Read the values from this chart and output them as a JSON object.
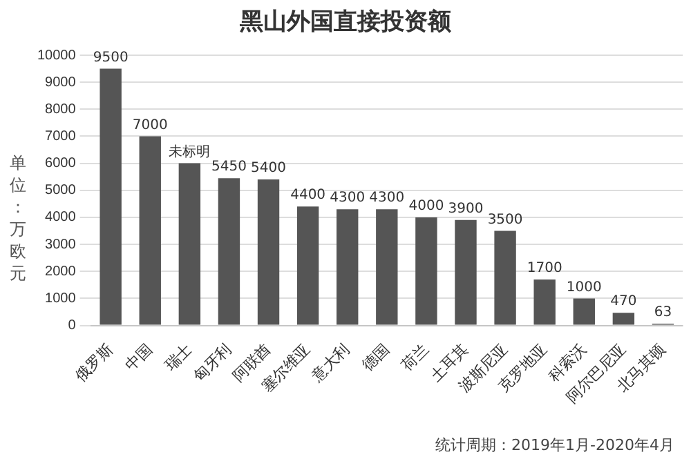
{
  "chart_data": {
    "type": "bar",
    "title": "黑山外国直接投资额",
    "ylabel": "单位：万欧元",
    "categories": [
      "俄罗斯",
      "中国",
      "瑞士",
      "匈牙利",
      "阿联酋",
      "塞尔维亚",
      "意大利",
      "德国",
      "荷兰",
      "土耳其",
      "波斯尼亚",
      "克罗地亚",
      "科索沃",
      "阿尔巴尼亚",
      "北马其顿"
    ],
    "values": [
      9500,
      7000,
      6000,
      5450,
      5400,
      4400,
      4300,
      4300,
      4000,
      3900,
      3500,
      1700,
      1000,
      470,
      63
    ],
    "value_labels": [
      "9500",
      "7000",
      "未标明",
      "5450",
      "5400",
      "4400",
      "4300",
      "4300",
      "4000",
      "3900",
      "3500",
      "1700",
      "1000",
      "470",
      "63"
    ],
    "color": "#555555",
    "ylim": [
      0,
      10000
    ],
    "yticks": [
      0,
      1000,
      2000,
      3000,
      4000,
      5000,
      6000,
      7000,
      8000,
      9000,
      10000
    ],
    "grid": "y",
    "legend": false,
    "annotations": [
      "统计周期：2019年1月-2020年4月"
    ]
  }
}
